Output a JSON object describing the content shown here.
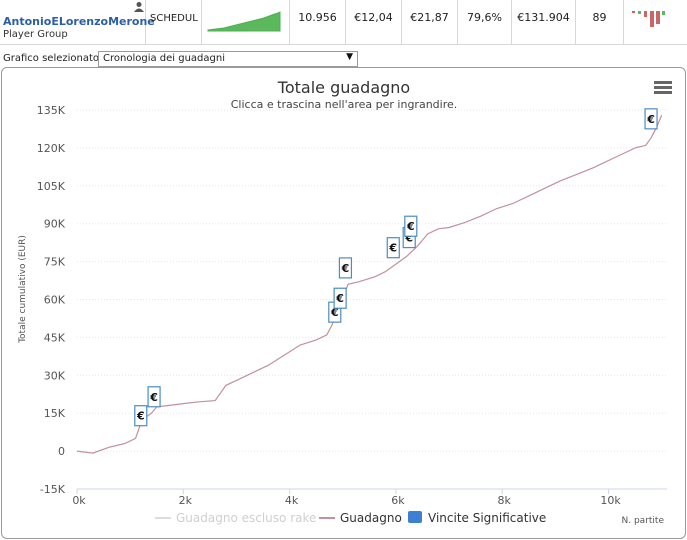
{
  "player": {
    "name": "AntonioELorenzoMerone",
    "group": "Player Group"
  },
  "schedule_label": "SCHEDUL",
  "stats": [
    "10.956",
    "€12,04",
    "€21,87",
    "79,6%",
    "€131.904",
    "89"
  ],
  "selector": {
    "label": "Grafico selezionato",
    "value": "Cronologia dei guadagni"
  },
  "colors": {
    "line": "#c4909b",
    "marker_border": "#4a8cc4",
    "legend_blue": "#3d7fd2",
    "spark_green": "#4caf50",
    "link_blue": "#2b5ea7"
  },
  "chart_data": {
    "type": "line",
    "title": "Totale guadagno",
    "subtitle": "Clicca e trascina nell'area per ingrandire.",
    "ylabel": "Totale cumulativo (EUR)",
    "xlabel": "N. partite",
    "xlim": [
      0,
      11100
    ],
    "ylim": [
      -15000,
      135000
    ],
    "x_ticks": [
      0,
      2000,
      4000,
      6000,
      8000,
      10000
    ],
    "x_tick_labels": [
      "0k",
      "2k",
      "4k",
      "6k",
      "8k",
      "10k"
    ],
    "y_ticks": [
      -15000,
      0,
      15000,
      30000,
      45000,
      60000,
      75000,
      90000,
      105000,
      120000,
      135000
    ],
    "y_tick_labels": [
      "-15K",
      "0",
      "15K",
      "30K",
      "45K",
      "60K",
      "75K",
      "90K",
      "105K",
      "120K",
      "135K"
    ],
    "grid": true,
    "series": [
      {
        "name": "Guadagno",
        "x": [
          0,
          300,
          600,
          900,
          1100,
          1200,
          1300,
          1400,
          1500,
          1700,
          2000,
          2300,
          2600,
          2800,
          3000,
          3300,
          3600,
          3900,
          4200,
          4500,
          4700,
          4800,
          4900,
          5000,
          5100,
          5300,
          5600,
          5800,
          6000,
          6200,
          6400,
          6600,
          6800,
          7000,
          7300,
          7600,
          7900,
          8200,
          8500,
          8800,
          9100,
          9400,
          9700,
          9900,
          10100,
          10300,
          10500,
          10700,
          10800,
          10900,
          11000
        ],
        "values": [
          0,
          -800,
          1500,
          3000,
          5000,
          11000,
          13500,
          15000,
          17500,
          18000,
          18800,
          19500,
          20000,
          26000,
          28000,
          31000,
          34000,
          38000,
          42000,
          44000,
          46000,
          50000,
          56000,
          61000,
          66000,
          67000,
          69000,
          71000,
          74000,
          77000,
          81000,
          86000,
          88000,
          88500,
          90500,
          93000,
          96000,
          98000,
          101000,
          104000,
          107000,
          109500,
          112000,
          114000,
          116000,
          118000,
          120000,
          121000,
          124000,
          128000,
          133000
        ]
      },
      {
        "name": "Guadagno escluso rake",
        "x": [],
        "values": []
      }
    ],
    "significant_wins": [
      {
        "x": 1200,
        "y": 14000
      },
      {
        "x": 1450,
        "y": 21500
      },
      {
        "x": 4850,
        "y": 55000
      },
      {
        "x": 4950,
        "y": 60500
      },
      {
        "x": 5050,
        "y": 72500
      },
      {
        "x": 5950,
        "y": 80500
      },
      {
        "x": 6250,
        "y": 84500
      },
      {
        "x": 6280,
        "y": 89000
      },
      {
        "x": 10800,
        "y": 131500
      }
    ],
    "legend": [
      "Guadagno escluso rake",
      "Guadagno",
      "Vincite Significative"
    ],
    "legend_position": "bottom-center",
    "marker_symbol": "€"
  }
}
